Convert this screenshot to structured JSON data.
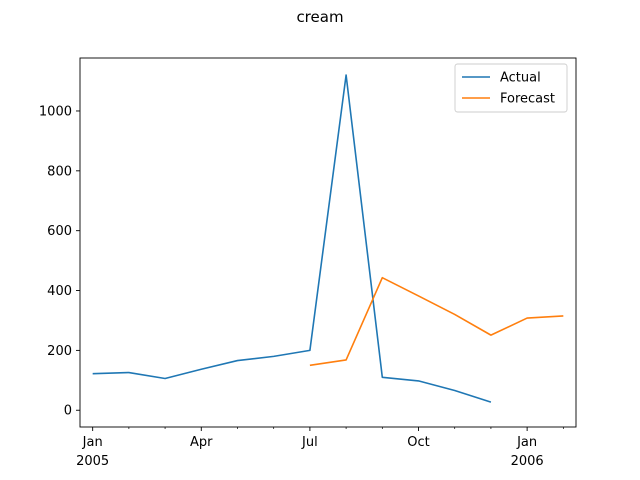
{
  "chart_data": {
    "type": "line",
    "title": "cream",
    "xlabel": "",
    "ylabel": "",
    "x_axis": {
      "type": "date",
      "ticks": [
        {
          "date": "2005-01",
          "label": "Jan",
          "sublabel": "2005"
        },
        {
          "date": "2005-04",
          "label": "Apr",
          "sublabel": ""
        },
        {
          "date": "2005-07",
          "label": "Jul",
          "sublabel": ""
        },
        {
          "date": "2005-10",
          "label": "Oct",
          "sublabel": ""
        },
        {
          "date": "2006-01",
          "label": "Jan",
          "sublabel": "2006"
        }
      ],
      "minor_ticks": [
        "2005-02",
        "2005-03",
        "2005-05",
        "2005-06",
        "2005-08",
        "2005-09",
        "2005-11",
        "2005-12",
        "2006-02"
      ],
      "range": [
        "2004-12",
        "2006-02"
      ]
    },
    "y_axis": {
      "ticks": [
        0,
        200,
        400,
        600,
        800,
        1000
      ],
      "range": [
        -56,
        1177
      ]
    },
    "grid": false,
    "legend": {
      "position": "upper-right"
    },
    "series": [
      {
        "name": "Actual",
        "color": "#1f77b4",
        "points": [
          {
            "x": "2005-01",
            "y": 122
          },
          {
            "x": "2005-02",
            "y": 126
          },
          {
            "x": "2005-03",
            "y": 106
          },
          {
            "x": "2005-04",
            "y": 137
          },
          {
            "x": "2005-05",
            "y": 166
          },
          {
            "x": "2005-06",
            "y": 180
          },
          {
            "x": "2005-07",
            "y": 200
          },
          {
            "x": "2005-08",
            "y": 1120
          },
          {
            "x": "2005-09",
            "y": 110
          },
          {
            "x": "2005-10",
            "y": 98
          },
          {
            "x": "2005-11",
            "y": 66
          },
          {
            "x": "2005-12",
            "y": 27
          }
        ]
      },
      {
        "name": "Forecast",
        "color": "#ff7f0e",
        "points": [
          {
            "x": "2005-07",
            "y": 150
          },
          {
            "x": "2005-08",
            "y": 168
          },
          {
            "x": "2005-09",
            "y": 443
          },
          {
            "x": "2005-10",
            "y": 382
          },
          {
            "x": "2005-11",
            "y": 320
          },
          {
            "x": "2005-12",
            "y": 251
          },
          {
            "x": "2006-01",
            "y": 308
          },
          {
            "x": "2006-02",
            "y": 315
          }
        ]
      }
    ]
  }
}
